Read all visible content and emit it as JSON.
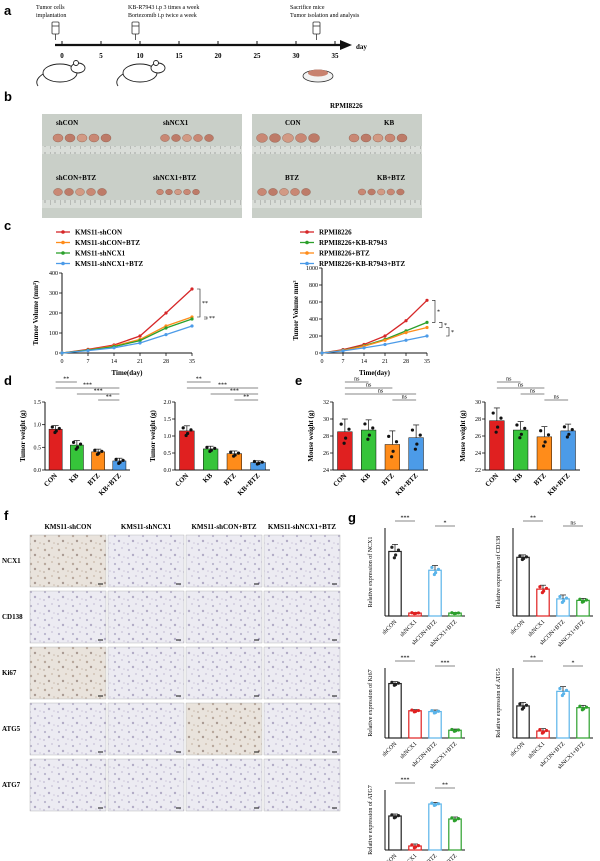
{
  "panels": {
    "a": {
      "letter": "a",
      "timeline": {
        "ticks": [
          "0",
          "5",
          "10",
          "15",
          "20",
          "25",
          "30",
          "35"
        ],
        "unit": "day"
      },
      "notes": {
        "implant": [
          "Tumor cells",
          "implantation"
        ],
        "treat": [
          "KB-R7943 i.p 3 times a week",
          "Bortezomib i.p twice a week"
        ],
        "sacrifice": [
          "Sacrifice mice",
          "Tumor isolation and analysis"
        ]
      }
    },
    "b": {
      "letter": "b",
      "group_title": "RPMI8226",
      "labels": [
        "shCON",
        "shNCX1",
        "shCON+BTZ",
        "shNCX1+BTZ",
        "CON",
        "KB",
        "BTZ",
        "KB+BTZ"
      ]
    },
    "c": {
      "letter": "c"
    },
    "d": {
      "letter": "d"
    },
    "e": {
      "letter": "e"
    },
    "f": {
      "letter": "f",
      "columns": [
        "KMS11-shCON",
        "KMS11-shNCX1",
        "KMS11-shCON+BTZ",
        "KMS11-shNCX1+BTZ"
      ],
      "rows": [
        "NCX1",
        "CD138",
        "Ki67",
        "ATG5",
        "ATG7"
      ]
    },
    "g": {
      "letter": "g"
    }
  },
  "chart_data": [
    {
      "id": "c-left",
      "type": "line",
      "xlabel": "Time(day)",
      "ylabel": "Tumor Volume (mm³)",
      "x": [
        0,
        7,
        14,
        21,
        28,
        35
      ],
      "ylim": [
        0,
        400
      ],
      "yticks": [
        0,
        100,
        200,
        300,
        400
      ],
      "series": [
        {
          "name": "KMS11-shCON",
          "color": "#d62728",
          "values": [
            0,
            18,
            40,
            85,
            200,
            320
          ]
        },
        {
          "name": "KMS11-shCON+BTZ",
          "color": "#ff8c1a",
          "values": [
            0,
            15,
            35,
            68,
            135,
            180
          ]
        },
        {
          "name": "KMS11-shNCX1",
          "color": "#2ca02c",
          "values": [
            0,
            14,
            32,
            62,
            125,
            170
          ]
        },
        {
          "name": "KMS11-shNCX1+BTZ",
          "color": "#4c9be8",
          "values": [
            0,
            12,
            26,
            50,
            92,
            135
          ]
        }
      ],
      "annotations": [
        "**",
        "**"
      ]
    },
    {
      "id": "c-right",
      "type": "line",
      "xlabel": "Time(day)",
      "ylabel": "Tumor Volume mm³",
      "x": [
        0,
        7,
        14,
        21,
        28,
        35
      ],
      "ylim": [
        0,
        1000
      ],
      "yticks": [
        0,
        200,
        400,
        600,
        800,
        1000
      ],
      "ytick_labels": [
        "0",
        "200",
        "400",
        "600",
        "800",
        "1000"
      ],
      "series": [
        {
          "name": "RPMI8226",
          "color": "#d62728",
          "values": [
            0,
            40,
            100,
            200,
            380,
            620
          ]
        },
        {
          "name": "RPMI8226+KB-R7943",
          "color": "#2ca02c",
          "values": [
            0,
            32,
            85,
            160,
            260,
            360
          ]
        },
        {
          "name": "RPMI8226+BTZ",
          "color": "#ff8c1a",
          "values": [
            0,
            30,
            80,
            150,
            240,
            300
          ]
        },
        {
          "name": "RPMI8226+KB-R7943+BTZ",
          "color": "#4c9be8",
          "values": [
            0,
            25,
            60,
            100,
            150,
            200
          ]
        }
      ],
      "annotations": [
        "*",
        "*",
        "*"
      ]
    },
    {
      "id": "d-left",
      "type": "bar",
      "ylabel": "Tumor weight (g)",
      "categories": [
        "CON",
        "KB",
        "BTZ",
        "KB+BTZ"
      ],
      "values": [
        0.9,
        0.55,
        0.4,
        0.2
      ],
      "errors": [
        0.08,
        0.1,
        0.06,
        0.06
      ],
      "colors": [
        "#e02020",
        "#36c43a",
        "#ff8c1a",
        "#4c9be8"
      ],
      "ylim": [
        0,
        1.5
      ],
      "yticks": [
        0.0,
        0.5,
        1.0,
        1.5
      ],
      "ytick_labels": [
        "0.0",
        "0.5",
        "1.0",
        "1.5"
      ],
      "sig": [
        {
          "from": 0,
          "to": 1,
          "label": "**"
        },
        {
          "from": 0,
          "to": 3,
          "label": "***"
        },
        {
          "from": 1,
          "to": 3,
          "label": "***"
        },
        {
          "from": 2,
          "to": 3,
          "label": "**"
        }
      ]
    },
    {
      "id": "d-right",
      "type": "bar",
      "ylabel": "Tumor weight (g)",
      "categories": [
        "CON",
        "KB",
        "BTZ",
        "KB+BTZ"
      ],
      "values": [
        1.15,
        0.62,
        0.48,
        0.22
      ],
      "errors": [
        0.15,
        0.08,
        0.08,
        0.05
      ],
      "colors": [
        "#e02020",
        "#36c43a",
        "#ff8c1a",
        "#4c9be8"
      ],
      "ylim": [
        0,
        2.0
      ],
      "yticks": [
        0.0,
        0.5,
        1.0,
        1.5,
        2.0
      ],
      "ytick_labels": [
        "0.0",
        "0.5",
        "1.0",
        "1.5",
        "2.0"
      ],
      "sig": [
        {
          "from": 0,
          "to": 1,
          "label": "**"
        },
        {
          "from": 0,
          "to": 3,
          "label": "***"
        },
        {
          "from": 1,
          "to": 3,
          "label": "***"
        },
        {
          "from": 2,
          "to": 3,
          "label": "**"
        }
      ]
    },
    {
      "id": "e-left",
      "type": "bar",
      "ylabel": "Mouse weight (g)",
      "categories": [
        "CON",
        "KB",
        "BTZ",
        "KB+BTZ"
      ],
      "values": [
        28.5,
        28.7,
        27.0,
        27.8
      ],
      "errors": [
        1.5,
        1.2,
        1.6,
        1.5
      ],
      "colors": [
        "#e02020",
        "#36c43a",
        "#ff8c1a",
        "#4c9be8"
      ],
      "ylim": [
        24,
        32
      ],
      "yticks": [
        24,
        26,
        28,
        30,
        32
      ],
      "sig": [
        {
          "from": 0,
          "to": 1,
          "label": "ns"
        },
        {
          "from": 0,
          "to": 2,
          "label": "ns"
        },
        {
          "from": 0,
          "to": 3,
          "label": "ns"
        },
        {
          "from": 2,
          "to": 3,
          "label": "ns"
        }
      ]
    },
    {
      "id": "e-right",
      "type": "bar",
      "ylabel": "Mouse weight (g)",
      "categories": [
        "CON",
        "KB",
        "BTZ",
        "KB+BTZ"
      ],
      "values": [
        27.8,
        26.7,
        25.9,
        26.6
      ],
      "errors": [
        1.5,
        1.0,
        1.2,
        0.8
      ],
      "colors": [
        "#e02020",
        "#36c43a",
        "#ff8c1a",
        "#4c9be8"
      ],
      "ylim": [
        22,
        30
      ],
      "yticks": [
        22,
        24,
        26,
        28,
        30
      ],
      "sig": [
        {
          "from": 0,
          "to": 1,
          "label": "ns"
        },
        {
          "from": 0,
          "to": 2,
          "label": "ns"
        },
        {
          "from": 1,
          "to": 2,
          "label": "ns"
        },
        {
          "from": 2,
          "to": 3,
          "label": "ns"
        }
      ]
    },
    {
      "id": "g-ncx1",
      "type": "bar",
      "ylabel": "Relative expression of NCX1",
      "categories": [
        "shCON",
        "shNCX1",
        "shCON+BTZ",
        "shNCX1+BTZ"
      ],
      "values": [
        1.1,
        0.05,
        0.78,
        0.05
      ],
      "errors": [
        0.12,
        0.01,
        0.08,
        0.01
      ],
      "colors": [
        "#222222",
        "#e02020",
        "#5ab4ea",
        "#2ca02c"
      ],
      "ylim": [
        0,
        1.5
      ],
      "sig": [
        {
          "from": 0,
          "to": 1,
          "label": "***"
        },
        {
          "from": 2,
          "to": 3,
          "label": "*"
        }
      ]
    },
    {
      "id": "g-cd138",
      "type": "bar",
      "ylabel": "Relative expression of CD138",
      "categories": [
        "shCON",
        "shNCX1",
        "shCON+BTZ",
        "shNCX1+BTZ"
      ],
      "values": [
        1.2,
        0.55,
        0.35,
        0.32
      ],
      "errors": [
        0.05,
        0.08,
        0.08,
        0.04
      ],
      "colors": [
        "#222222",
        "#e02020",
        "#5ab4ea",
        "#2ca02c"
      ],
      "ylim": [
        0,
        1.8
      ],
      "sig": [
        {
          "from": 0,
          "to": 1,
          "label": "**"
        },
        {
          "from": 2,
          "to": 3,
          "label": "ns"
        }
      ]
    },
    {
      "id": "g-ki67",
      "type": "bar",
      "ylabel": "Relative expression of Ki67",
      "categories": [
        "shCON",
        "shNCX1",
        "shCON+BTZ",
        "shNCX1+BTZ"
      ],
      "values": [
        1.4,
        0.7,
        0.68,
        0.2
      ],
      "errors": [
        0.05,
        0.03,
        0.04,
        0.03
      ],
      "colors": [
        "#222222",
        "#e02020",
        "#5ab4ea",
        "#2ca02c"
      ],
      "ylim": [
        0,
        1.8
      ],
      "sig": [
        {
          "from": 0,
          "to": 1,
          "label": "***"
        },
        {
          "from": 2,
          "to": 3,
          "label": "***"
        }
      ]
    },
    {
      "id": "g-atg5",
      "type": "bar",
      "ylabel": "Relative expression of ATG5",
      "categories": [
        "shCON",
        "shNCX1",
        "shCON+BTZ",
        "shNCX1+BTZ"
      ],
      "values": [
        0.55,
        0.12,
        0.8,
        0.52
      ],
      "errors": [
        0.06,
        0.04,
        0.08,
        0.04
      ],
      "colors": [
        "#222222",
        "#e02020",
        "#5ab4ea",
        "#2ca02c"
      ],
      "ylim": [
        0,
        1.2
      ],
      "sig": [
        {
          "from": 0,
          "to": 1,
          "label": "**"
        },
        {
          "from": 2,
          "to": 3,
          "label": "*"
        }
      ]
    },
    {
      "id": "g-atg7",
      "type": "bar",
      "ylabel": "Relative expression of ATG7",
      "categories": [
        "shCON",
        "shNCX1",
        "shCON+BTZ",
        "shNCX1+BTZ"
      ],
      "values": [
        0.68,
        0.08,
        0.92,
        0.62
      ],
      "errors": [
        0.04,
        0.04,
        0.03,
        0.04
      ],
      "colors": [
        "#222222",
        "#e02020",
        "#5ab4ea",
        "#2ca02c"
      ],
      "ylim": [
        0,
        1.2
      ],
      "sig": [
        {
          "from": 0,
          "to": 1,
          "label": "***"
        },
        {
          "from": 2,
          "to": 3,
          "label": "**"
        }
      ]
    }
  ]
}
